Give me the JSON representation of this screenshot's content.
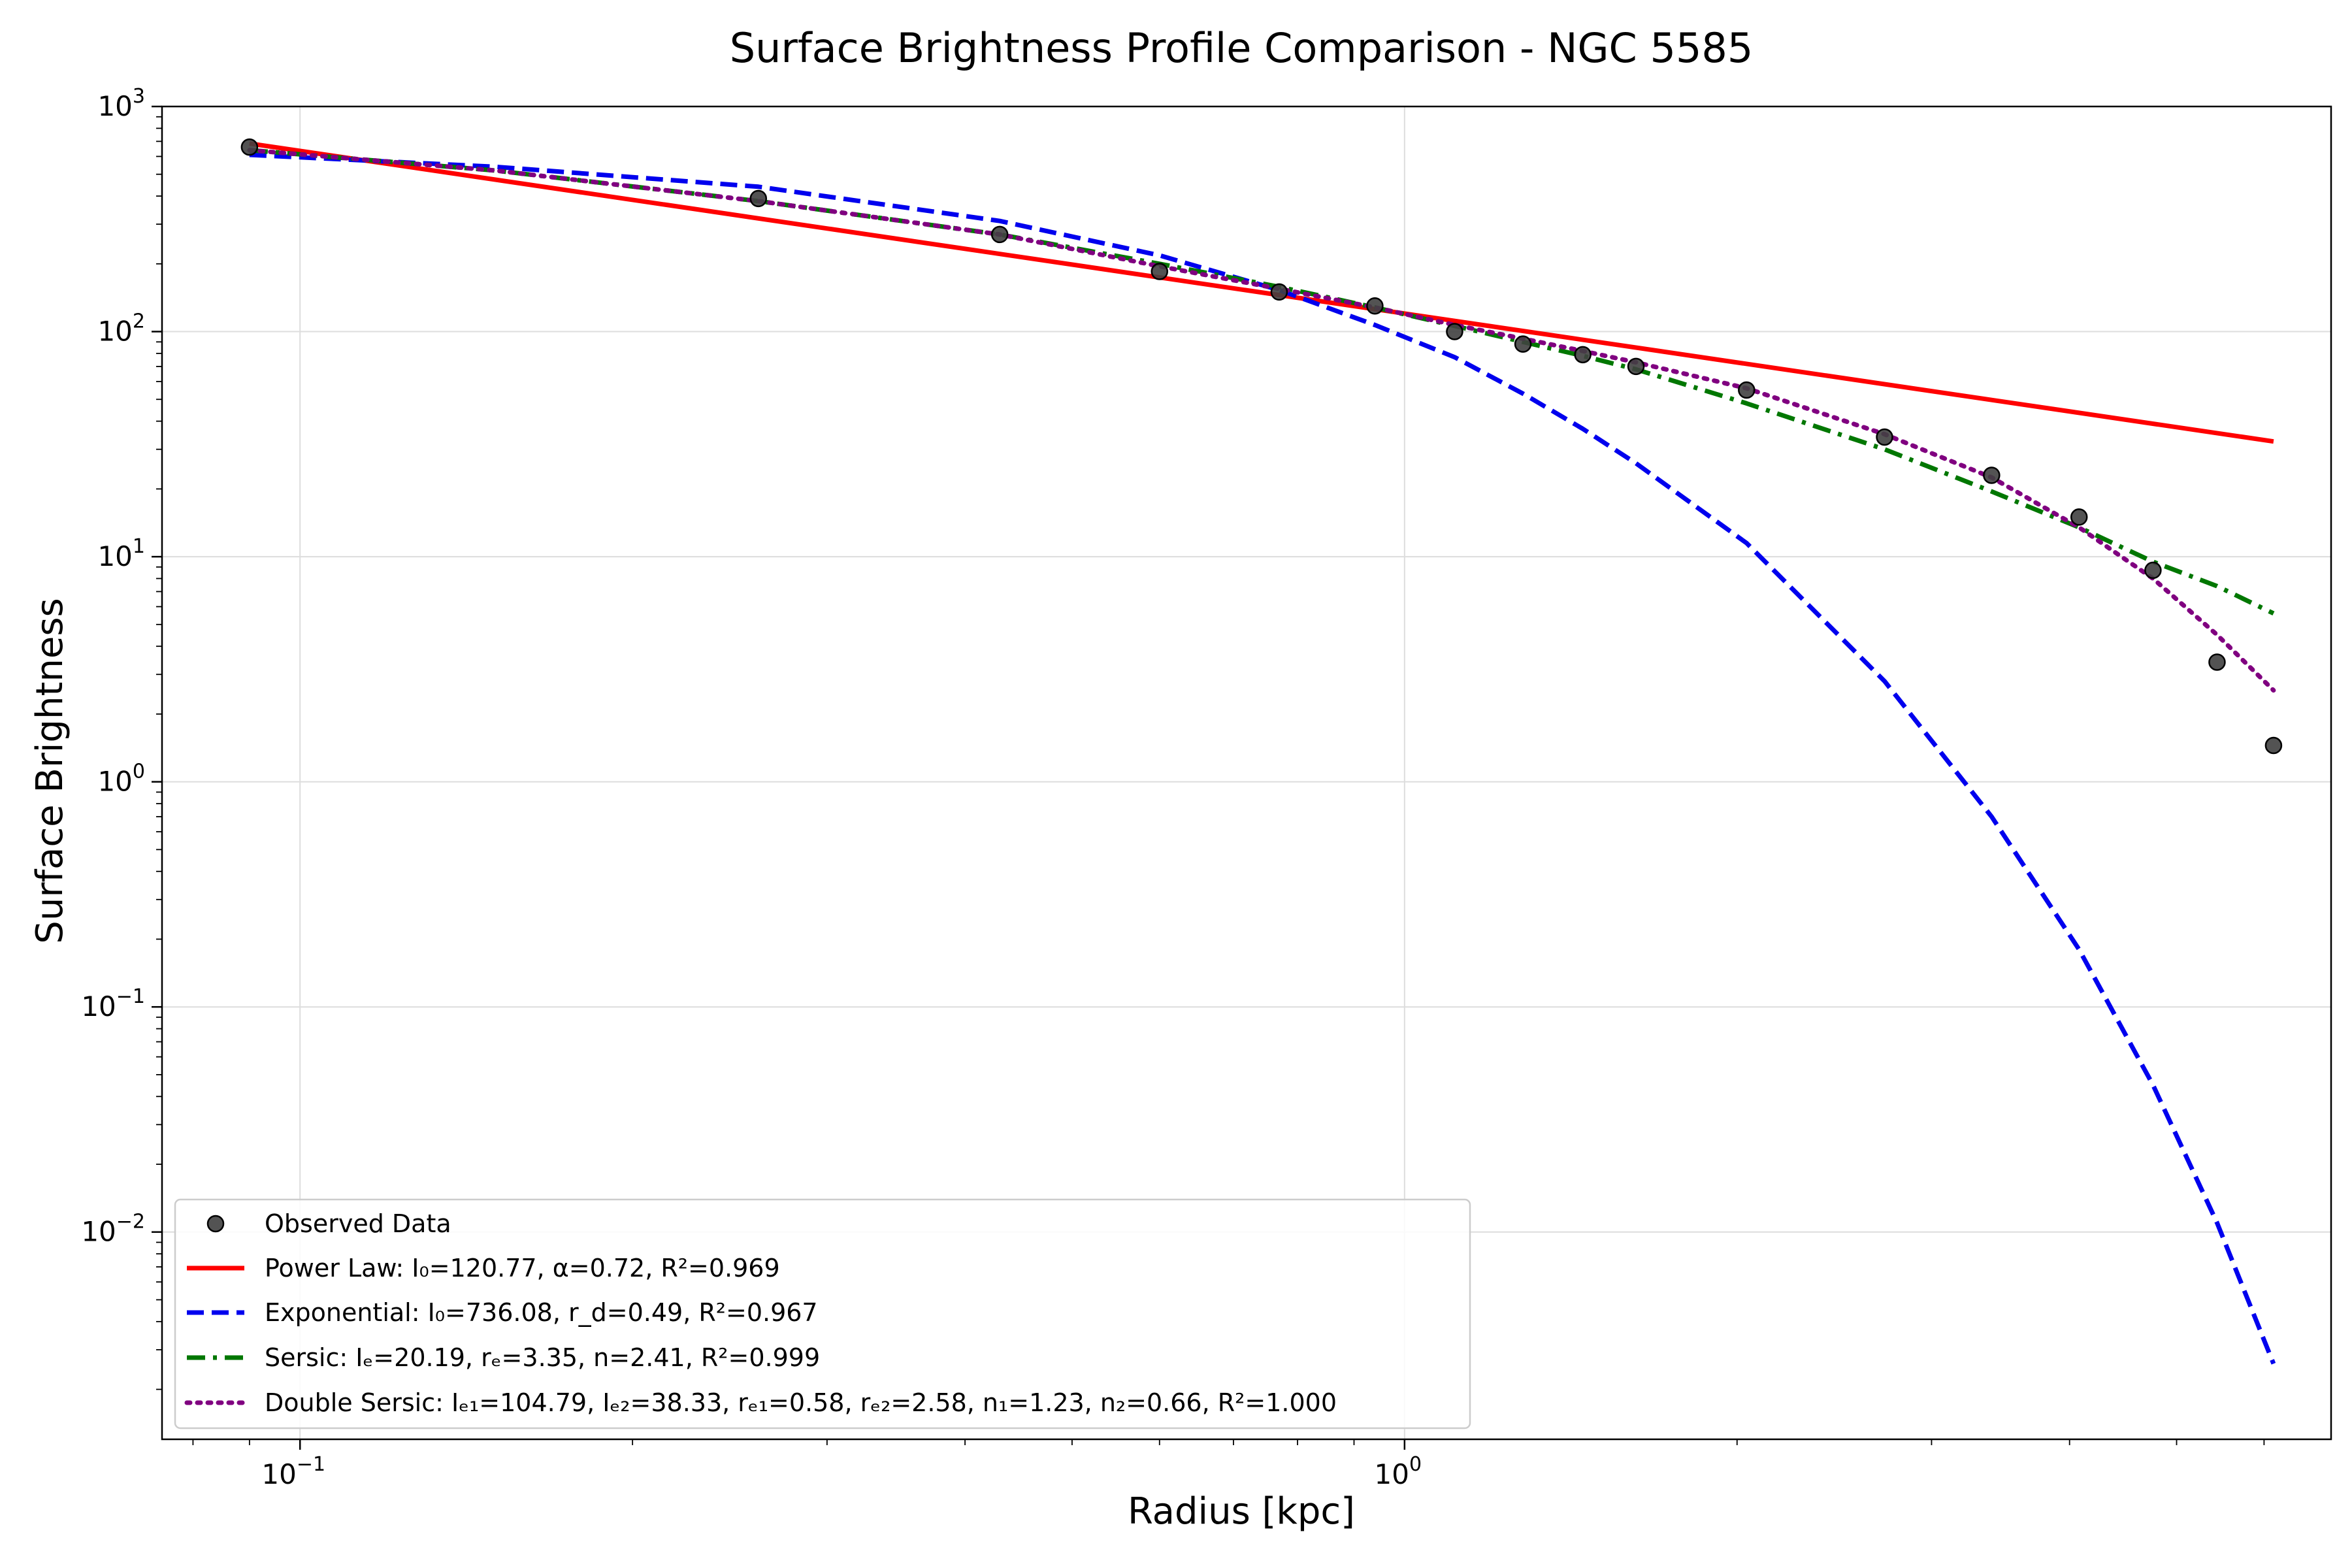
{
  "chart_data": {
    "type": "line",
    "title": "Surface Brightness Profile Comparison - NGC 5585",
    "xlabel": "Radius [kpc]",
    "ylabel": "Surface Brightness",
    "x_scale": "log",
    "y_scale": "log",
    "xlim": [
      0.075,
      6.9
    ],
    "ylim": [
      0.0012,
      1000
    ],
    "grid": true,
    "legend_position": "lower-left",
    "x_ticks": [
      {
        "value": 0.1,
        "base": "10",
        "exp": "−1"
      },
      {
        "value": 1,
        "base": "10",
        "exp": "0"
      }
    ],
    "y_ticks": [
      {
        "value": 1000,
        "base": "10",
        "exp": "3"
      },
      {
        "value": 100,
        "base": "10",
        "exp": "2"
      },
      {
        "value": 10,
        "base": "10",
        "exp": "1"
      },
      {
        "value": 1,
        "base": "10",
        "exp": "0"
      },
      {
        "value": 0.1,
        "base": "10",
        "exp": "−1"
      },
      {
        "value": 0.01,
        "base": "10",
        "exp": "−2"
      }
    ],
    "series": [
      {
        "name": "Observed Data",
        "kind": "scatter",
        "color": "#404040",
        "x": [
          0.09,
          0.26,
          0.43,
          0.6,
          0.77,
          0.94,
          1.11,
          1.28,
          1.45,
          1.62,
          2.04,
          2.72,
          3.4,
          4.08,
          4.76,
          5.44,
          6.12
        ],
        "y": [
          660,
          390,
          270,
          185,
          150,
          130,
          100,
          88,
          79,
          70,
          55,
          34,
          23,
          15,
          8.7,
          3.4,
          1.45
        ]
      },
      {
        "name": "Power Law: I₀=120.77, α=0.72, R²=0.969",
        "kind": "line",
        "color": "#ff0000",
        "dash": "solid",
        "x": [
          0.09,
          6.12
        ],
        "y": [
          685,
          32.5
        ]
      },
      {
        "name": "Exponential: I₀=736.08, r_d=0.49, R²=0.967",
        "kind": "line",
        "color": "#0000ee",
        "dash": "dashed",
        "x": [
          0.09,
          0.15,
          0.26,
          0.43,
          0.6,
          0.77,
          0.94,
          1.11,
          1.28,
          1.45,
          1.62,
          2.04,
          2.72,
          3.4,
          4.08,
          4.76,
          5.44,
          6.12
        ],
        "y": [
          610,
          540,
          440,
          310,
          218,
          153,
          107,
          77,
          53,
          37,
          26,
          11.5,
          2.8,
          0.7,
          0.18,
          0.045,
          0.011,
          0.0026
        ]
      },
      {
        "name": "Sersic: Iₑ=20.19, rₑ=3.35, n=2.41, R²=0.999",
        "kind": "line",
        "color": "#007700",
        "dash": "dashdot",
        "x": [
          0.09,
          0.15,
          0.26,
          0.43,
          0.6,
          0.77,
          0.94,
          1.11,
          1.28,
          1.45,
          1.62,
          2.04,
          2.72,
          3.4,
          4.08,
          4.76,
          5.44,
          6.12
        ],
        "y": [
          640,
          520,
          380,
          270,
          200,
          158,
          128,
          106,
          90,
          78,
          68,
          48,
          30,
          19.5,
          13.5,
          9.5,
          7.4,
          5.6
        ]
      },
      {
        "name": "Double Sersic: Iₑ₁=104.79, Iₑ₂=38.33, rₑ₁=0.58, rₑ₂=2.58, n₁=1.23, n₂=0.66, R²=1.000",
        "kind": "line",
        "color": "#800080",
        "dash": "dotted",
        "x": [
          0.09,
          0.15,
          0.26,
          0.43,
          0.6,
          0.77,
          0.94,
          1.11,
          1.28,
          1.45,
          1.62,
          2.04,
          2.72,
          3.4,
          4.08,
          4.76,
          5.44,
          6.12
        ],
        "y": [
          640,
          520,
          380,
          270,
          195,
          155,
          128,
          107,
          93,
          82,
          73,
          56,
          35,
          22.5,
          13.5,
          8.0,
          4.5,
          2.55
        ]
      }
    ]
  }
}
